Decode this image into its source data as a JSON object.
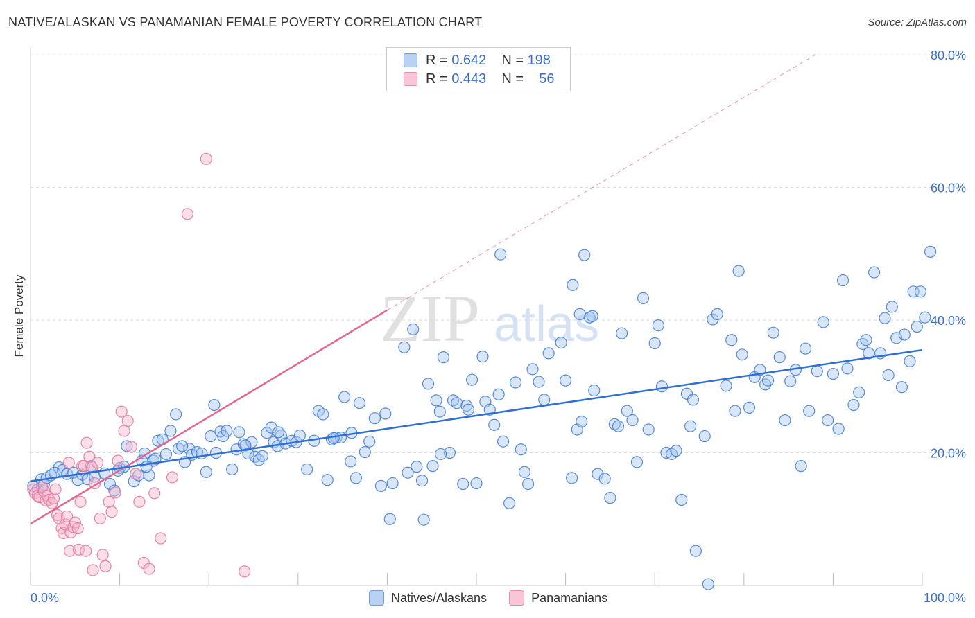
{
  "title": "NATIVE/ALASKAN VS PANAMANIAN FEMALE POVERTY CORRELATION CHART",
  "source": "Source: ZipAtlas.com",
  "watermark": {
    "zip": "ZIP",
    "atlas": "atlas"
  },
  "colors": {
    "blue": "#3a78d4",
    "blue_fill": "#a9c8f0",
    "blue_line": "#2f6fd4",
    "pink": "#e07098",
    "pink_fill": "#f6b8cc",
    "pink_line": "#e2668f",
    "grid": "#dddddd",
    "tick_text": "#3a6fd0"
  },
  "legend": {
    "rows": [
      {
        "r_label": "R =",
        "r_value": "0.642",
        "n_label": "N =",
        "n_value": "198",
        "series": "blue"
      },
      {
        "r_label": "R =",
        "r_value": "0.443",
        "n_label": "N =",
        "n_value": "56",
        "series": "pink"
      }
    ]
  },
  "bottom_legend": [
    {
      "label": "Natives/Alaskans",
      "series": "blue"
    },
    {
      "label": "Panamanians",
      "series": "pink"
    }
  ],
  "chart_data": {
    "type": "scatter",
    "title": "NATIVE/ALASKAN VS PANAMANIAN FEMALE POVERTY CORRELATION CHART",
    "xlabel": "",
    "ylabel": "Female Poverty",
    "xlim": [
      0,
      100
    ],
    "ylim": [
      0,
      80
    ],
    "x_tick_labels": [
      "0.0%",
      "100.0%"
    ],
    "y_ticks": [
      20,
      40,
      60,
      80
    ],
    "y_tick_labels": [
      "20.0%",
      "40.0%",
      "60.0%",
      "80.0%"
    ],
    "grid": true,
    "series": [
      {
        "name": "Natives/Alaskans",
        "color": "blue",
        "R": 0.642,
        "N": 198,
        "trend": {
          "x": [
            0,
            100
          ],
          "y": [
            15.7,
            35.5
          ]
        },
        "points": [
          [
            0.3,
            15.0
          ],
          [
            0.8,
            14.5
          ],
          [
            1.2,
            16.0
          ],
          [
            1.5,
            15.2
          ],
          [
            1.8,
            16.2
          ],
          [
            2.3,
            16.6
          ],
          [
            3.2,
            17.8
          ],
          [
            3.6,
            17.4
          ],
          [
            4.1,
            16.8
          ],
          [
            4.8,
            17.0
          ],
          [
            5.3,
            15.9
          ],
          [
            5.8,
            16.7
          ],
          [
            6.4,
            16.0
          ],
          [
            7.2,
            16.4
          ],
          [
            8.3,
            16.9
          ],
          [
            8.9,
            15.3
          ],
          [
            9.4,
            14.3
          ],
          [
            10.0,
            17.7
          ],
          [
            10.5,
            17.9
          ],
          [
            10.8,
            21.0
          ],
          [
            11.6,
            15.7
          ],
          [
            12.1,
            16.6
          ],
          [
            12.5,
            18.8
          ],
          [
            12.8,
            19.9
          ],
          [
            13.3,
            16.6
          ],
          [
            13.8,
            18.8
          ],
          [
            14.3,
            21.8
          ],
          [
            14.8,
            22.0
          ],
          [
            15.2,
            19.8
          ],
          [
            15.7,
            23.3
          ],
          [
            16.3,
            25.8
          ],
          [
            16.6,
            20.6
          ],
          [
            17.3,
            18.6
          ],
          [
            17.8,
            20.6
          ],
          [
            18.1,
            19.7
          ],
          [
            18.7,
            20.1
          ],
          [
            19.2,
            19.9
          ],
          [
            19.7,
            17.1
          ],
          [
            20.2,
            22.5
          ],
          [
            20.6,
            27.2
          ],
          [
            21.3,
            23.2
          ],
          [
            21.6,
            22.5
          ],
          [
            22.0,
            23.3
          ],
          [
            22.6,
            17.5
          ],
          [
            23.1,
            20.5
          ],
          [
            23.4,
            23.1
          ],
          [
            23.9,
            21.3
          ],
          [
            24.4,
            19.9
          ],
          [
            24.8,
            21.6
          ],
          [
            25.2,
            19.4
          ],
          [
            25.6,
            18.9
          ],
          [
            26.0,
            19.5
          ],
          [
            26.5,
            23.0
          ],
          [
            27.0,
            23.8
          ],
          [
            27.3,
            21.6
          ],
          [
            27.7,
            21.0
          ],
          [
            28.1,
            22.6
          ],
          [
            28.6,
            21.4
          ],
          [
            29.3,
            21.8
          ],
          [
            29.8,
            21.6
          ],
          [
            30.2,
            22.6
          ],
          [
            31.0,
            17.5
          ],
          [
            31.8,
            21.8
          ],
          [
            32.3,
            26.3
          ],
          [
            32.8,
            25.8
          ],
          [
            33.3,
            15.9
          ],
          [
            33.8,
            22.0
          ],
          [
            34.3,
            22.3
          ],
          [
            34.8,
            22.3
          ],
          [
            35.2,
            28.4
          ],
          [
            36.0,
            23.0
          ],
          [
            36.5,
            16.2
          ],
          [
            36.9,
            27.5
          ],
          [
            37.5,
            20.1
          ],
          [
            38.0,
            21.7
          ],
          [
            38.6,
            25.2
          ],
          [
            39.3,
            15.0
          ],
          [
            39.8,
            25.9
          ],
          [
            40.3,
            10.0
          ],
          [
            40.6,
            15.4
          ],
          [
            41.9,
            35.9
          ],
          [
            42.3,
            17.0
          ],
          [
            42.9,
            38.6
          ],
          [
            43.3,
            17.9
          ],
          [
            44.1,
            9.9
          ],
          [
            44.6,
            30.4
          ],
          [
            45.1,
            18.0
          ],
          [
            45.5,
            27.9
          ],
          [
            45.9,
            26.2
          ],
          [
            46.3,
            34.4
          ],
          [
            47.0,
            20.0
          ],
          [
            47.4,
            27.9
          ],
          [
            47.8,
            27.5
          ],
          [
            48.5,
            15.3
          ],
          [
            48.9,
            27.1
          ],
          [
            49.5,
            31.0
          ],
          [
            50.0,
            15.4
          ],
          [
            50.7,
            34.5
          ],
          [
            51.0,
            27.7
          ],
          [
            51.5,
            26.5
          ],
          [
            52.0,
            24.2
          ],
          [
            52.5,
            28.8
          ],
          [
            53.0,
            21.7
          ],
          [
            53.7,
            12.4
          ],
          [
            54.4,
            30.6
          ],
          [
            55.0,
            20.5
          ],
          [
            55.4,
            17.1
          ],
          [
            55.8,
            15.3
          ],
          [
            56.3,
            32.6
          ],
          [
            57.0,
            30.7
          ],
          [
            57.6,
            28.0
          ],
          [
            58.1,
            35.0
          ],
          [
            59.5,
            36.6
          ],
          [
            60.0,
            30.9
          ],
          [
            60.7,
            16.2
          ],
          [
            61.3,
            23.5
          ],
          [
            61.8,
            24.7
          ],
          [
            62.7,
            40.4
          ],
          [
            63.2,
            29.4
          ],
          [
            63.6,
            16.8
          ],
          [
            64.4,
            16.1
          ],
          [
            65.0,
            13.2
          ],
          [
            65.5,
            24.3
          ],
          [
            65.9,
            24.0
          ],
          [
            66.3,
            38.0
          ],
          [
            66.9,
            26.3
          ],
          [
            67.5,
            24.9
          ],
          [
            68.0,
            18.6
          ],
          [
            68.7,
            43.3
          ],
          [
            69.3,
            23.5
          ],
          [
            70.0,
            36.5
          ],
          [
            70.4,
            39.2
          ],
          [
            70.8,
            30.0
          ],
          [
            71.3,
            20.0
          ],
          [
            71.9,
            19.8
          ],
          [
            72.4,
            20.3
          ],
          [
            73.0,
            12.9
          ],
          [
            73.6,
            28.9
          ],
          [
            74.0,
            24.0
          ],
          [
            74.3,
            28.0
          ],
          [
            75.6,
            22.5
          ],
          [
            76.5,
            40.1
          ],
          [
            77.0,
            40.9
          ],
          [
            78.0,
            30.1
          ],
          [
            78.6,
            37.0
          ],
          [
            79.0,
            26.3
          ],
          [
            79.4,
            47.4
          ],
          [
            79.8,
            34.8
          ],
          [
            80.6,
            26.8
          ],
          [
            81.2,
            31.4
          ],
          [
            81.8,
            32.5
          ],
          [
            82.4,
            30.3
          ],
          [
            82.7,
            30.9
          ],
          [
            83.3,
            38.1
          ],
          [
            84.0,
            34.4
          ],
          [
            84.6,
            24.9
          ],
          [
            85.2,
            30.8
          ],
          [
            85.8,
            32.5
          ],
          [
            86.4,
            18.0
          ],
          [
            86.9,
            35.7
          ],
          [
            87.3,
            26.3
          ],
          [
            88.2,
            32.3
          ],
          [
            88.9,
            39.7
          ],
          [
            89.4,
            24.9
          ],
          [
            90.0,
            31.9
          ],
          [
            90.6,
            23.6
          ],
          [
            91.1,
            46.0
          ],
          [
            91.6,
            32.7
          ],
          [
            92.3,
            27.2
          ],
          [
            92.9,
            29.1
          ],
          [
            93.3,
            36.4
          ],
          [
            93.7,
            37.0
          ],
          [
            94.0,
            35.0
          ],
          [
            94.6,
            47.2
          ],
          [
            95.3,
            35.0
          ],
          [
            95.8,
            40.3
          ],
          [
            96.2,
            31.7
          ],
          [
            96.6,
            42.0
          ],
          [
            97.1,
            37.3
          ],
          [
            97.7,
            29.9
          ],
          [
            98.0,
            37.8
          ],
          [
            98.6,
            33.8
          ],
          [
            99.0,
            44.3
          ],
          [
            99.4,
            39.0
          ],
          [
            99.8,
            44.3
          ],
          [
            100.3,
            40.4
          ],
          [
            100.9,
            50.3
          ],
          [
            60.8,
            45.3
          ],
          [
            61.6,
            40.9
          ],
          [
            62.1,
            49.8
          ],
          [
            63.0,
            40.6
          ],
          [
            74.6,
            5.2
          ],
          [
            52.7,
            49.9
          ],
          [
            76.0,
            0.2
          ],
          [
            17.0,
            21.0
          ],
          [
            20.8,
            20.0
          ],
          [
            2.7,
            17.0
          ],
          [
            6.8,
            18.0
          ],
          [
            9.8,
            17.3
          ],
          [
            13.0,
            17.9
          ],
          [
            14.0,
            19.1
          ],
          [
            24.1,
            21.1
          ],
          [
            27.8,
            23.1
          ],
          [
            34.0,
            22.2
          ],
          [
            35.9,
            18.7
          ],
          [
            43.9,
            15.8
          ],
          [
            46.0,
            19.8
          ],
          [
            49.1,
            26.5
          ]
        ]
      },
      {
        "name": "Panamanians",
        "color": "pink",
        "R": 0.443,
        "N": 56,
        "trend": {
          "x": [
            0,
            40
          ],
          "y": [
            9.3,
            41.5
          ]
        },
        "trend_extension": {
          "x": [
            40,
            88
          ],
          "y": [
            41.5,
            80.0
          ]
        },
        "points": [
          [
            0.3,
            14.5
          ],
          [
            0.5,
            13.9
          ],
          [
            0.8,
            13.5
          ],
          [
            1.0,
            13.3
          ],
          [
            1.3,
            14.8
          ],
          [
            1.5,
            14.2
          ],
          [
            1.7,
            12.8
          ],
          [
            1.9,
            13.5
          ],
          [
            2.1,
            12.9
          ],
          [
            2.4,
            12.4
          ],
          [
            2.6,
            13.1
          ],
          [
            2.8,
            14.5
          ],
          [
            3.0,
            10.6
          ],
          [
            3.2,
            10.1
          ],
          [
            3.5,
            8.6
          ],
          [
            3.7,
            7.9
          ],
          [
            3.9,
            9.2
          ],
          [
            4.1,
            10.4
          ],
          [
            4.3,
            18.5
          ],
          [
            4.5,
            8.0
          ],
          [
            4.8,
            8.8
          ],
          [
            5.0,
            9.5
          ],
          [
            5.3,
            8.6
          ],
          [
            5.6,
            12.6
          ],
          [
            5.8,
            18.0
          ],
          [
            6.0,
            18.0
          ],
          [
            6.3,
            21.5
          ],
          [
            6.6,
            19.4
          ],
          [
            6.9,
            17.8
          ],
          [
            7.2,
            15.4
          ],
          [
            7.5,
            18.5
          ],
          [
            7.8,
            10.1
          ],
          [
            8.1,
            4.6
          ],
          [
            8.4,
            2.9
          ],
          [
            8.8,
            12.6
          ],
          [
            9.1,
            11.1
          ],
          [
            9.5,
            14.0
          ],
          [
            9.8,
            18.8
          ],
          [
            10.2,
            26.2
          ],
          [
            10.5,
            23.3
          ],
          [
            10.9,
            24.8
          ],
          [
            11.3,
            20.9
          ],
          [
            11.8,
            16.8
          ],
          [
            12.2,
            12.6
          ],
          [
            12.7,
            3.4
          ],
          [
            13.3,
            2.5
          ],
          [
            13.9,
            13.9
          ],
          [
            14.6,
            7.1
          ],
          [
            15.9,
            16.3
          ],
          [
            17.6,
            56.0
          ],
          [
            19.7,
            64.3
          ],
          [
            24.0,
            2.1
          ],
          [
            4.4,
            5.2
          ],
          [
            5.4,
            5.4
          ],
          [
            6.2,
            5.2
          ],
          [
            7.0,
            2.3
          ]
        ]
      }
    ]
  }
}
